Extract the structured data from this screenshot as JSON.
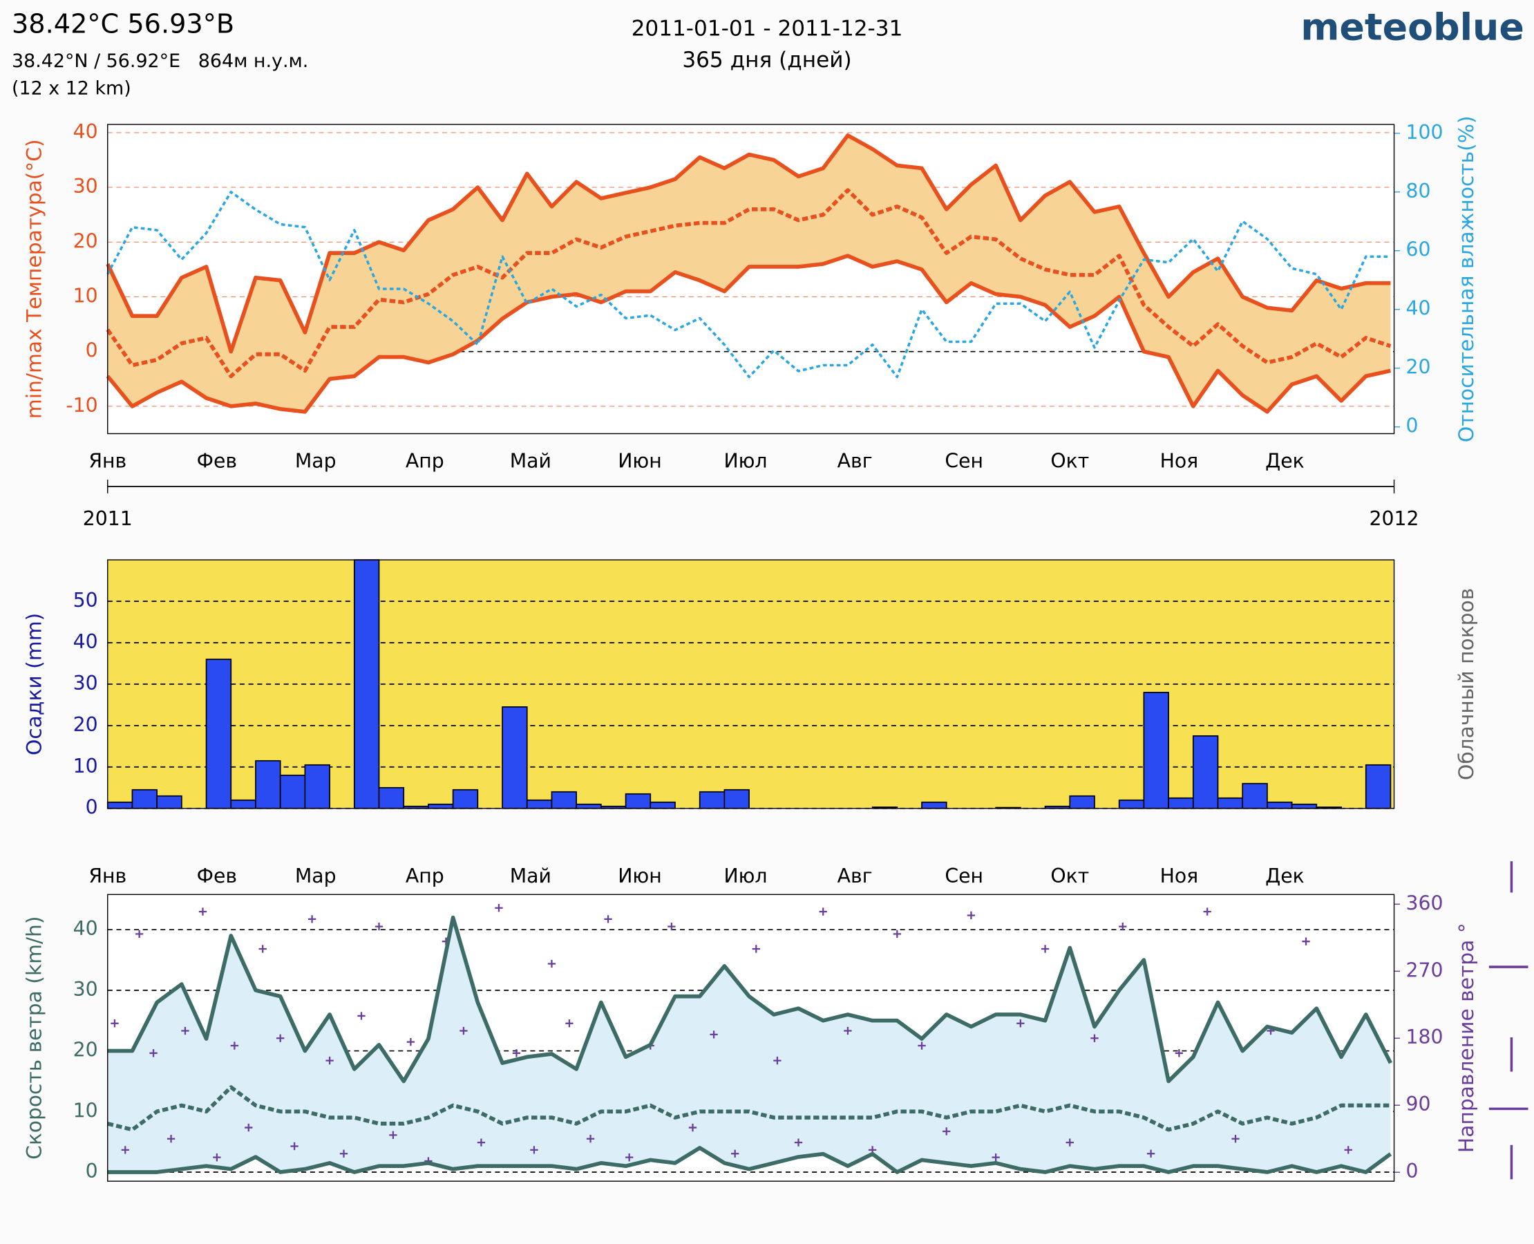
{
  "header": {
    "title": "38.42°C 56.93°B",
    "coords": "38.42°N / 56.92°E   864м н.у.м.",
    "grid_size": "(12 x 12 km)",
    "period": "2011-01-01 - 2011-12-31",
    "days": "365 дня (дней)",
    "brand": "meteoblue"
  },
  "chart_data": [
    {
      "type": "line",
      "ylabel": "min/max Температура(°C)",
      "y2label": "Относительная влажность(%)",
      "years": [
        "2011",
        "2012"
      ],
      "xlim": [
        0,
        365
      ],
      "xticks": [
        {
          "value": 0,
          "label": "Янв"
        },
        {
          "value": 31,
          "label": "Фев"
        },
        {
          "value": 59,
          "label": "Мар"
        },
        {
          "value": 90,
          "label": "Апр"
        },
        {
          "value": 120,
          "label": "Май"
        },
        {
          "value": 151,
          "label": "Июн"
        },
        {
          "value": 181,
          "label": "Июл"
        },
        {
          "value": 212,
          "label": "Авг"
        },
        {
          "value": 243,
          "label": "Сен"
        },
        {
          "value": 273,
          "label": "Окт"
        },
        {
          "value": 304,
          "label": "Ноя"
        },
        {
          "value": 334,
          "label": "Дек"
        }
      ],
      "ylim": [
        -15,
        41.5
      ],
      "yticks": [
        -10,
        0,
        10,
        20,
        30,
        40
      ],
      "y2lim": [
        -2.3,
        103
      ],
      "y2ticks": [
        0,
        20,
        40,
        60,
        80,
        100
      ],
      "grid": true,
      "band_color": "#f8d396",
      "x": [
        0,
        7,
        14,
        21,
        28,
        35,
        42,
        49,
        56,
        63,
        70,
        77,
        84,
        91,
        98,
        105,
        112,
        119,
        126,
        133,
        140,
        147,
        154,
        161,
        168,
        175,
        182,
        189,
        196,
        203,
        210,
        217,
        224,
        231,
        238,
        245,
        252,
        259,
        266,
        273,
        280,
        287,
        294,
        301,
        308,
        315,
        322,
        329,
        336,
        343,
        350,
        357,
        364
      ],
      "series": [
        {
          "color": "#e8501e",
          "values": [
            16,
            6.5,
            6.5,
            13.5,
            15.5,
            0,
            13.5,
            13,
            3.5,
            18,
            18,
            20,
            18.5,
            24,
            26,
            30,
            24,
            32.5,
            26.5,
            31,
            28,
            29,
            30,
            31.5,
            35.5,
            33.5,
            36,
            35,
            32,
            33.5,
            39.5,
            37,
            34,
            33.5,
            26,
            30.5,
            34,
            24,
            28.5,
            31,
            25.5,
            26.5,
            18,
            10,
            14.5,
            17,
            10,
            8,
            7.5,
            13,
            11.5,
            12.5,
            12.5
          ]
        },
        {
          "color": "#e8501e",
          "dash": true,
          "values": [
            4,
            -2.5,
            -1.5,
            1.5,
            2.5,
            -4.5,
            -0.5,
            -0.5,
            -3.5,
            4.5,
            4.5,
            9.5,
            9,
            10.5,
            14,
            15.5,
            13.5,
            18,
            18,
            20.5,
            19,
            21,
            22,
            23,
            23.5,
            23.5,
            26,
            26,
            24,
            25,
            29.5,
            25,
            26.5,
            24.5,
            18,
            21,
            20.5,
            17,
            15,
            14,
            14,
            17.5,
            8.5,
            4.5,
            1,
            5,
            1,
            -2,
            -1,
            1.5,
            -1,
            2.5,
            1
          ]
        },
        {
          "color": "#e8501e",
          "values": [
            -4.5,
            -10,
            -7.5,
            -5.5,
            -8.5,
            -10,
            -9.5,
            -10.5,
            -11,
            -5,
            -4.5,
            -1,
            -1,
            -2,
            -0.5,
            2,
            6,
            9,
            10,
            10.5,
            9,
            11,
            11,
            14.5,
            13,
            11,
            15.5,
            15.5,
            15.5,
            16,
            17.5,
            15.5,
            16.5,
            15,
            9,
            12.5,
            10.5,
            10,
            8.5,
            4.5,
            6.5,
            10,
            0,
            -1,
            -10,
            -3.5,
            -8,
            -11,
            -6,
            -4.5,
            -9,
            -4.5,
            -3.5
          ]
        },
        {
          "color": "#2aa6e0",
          "dash": true,
          "axis": "y2",
          "values": [
            52,
            68,
            67,
            57,
            66,
            80,
            74,
            69,
            68,
            50,
            67,
            47,
            47,
            42,
            36,
            28,
            58,
            42,
            47,
            41,
            45,
            37,
            38,
            33,
            37,
            28,
            17,
            26,
            19,
            21,
            21,
            28,
            17,
            40,
            29,
            29,
            42,
            42,
            36,
            46,
            27,
            43,
            57,
            56,
            64,
            53,
            70,
            64,
            54,
            52,
            40,
            58,
            58
          ]
        }
      ]
    },
    {
      "type": "bar",
      "ylabel": "Осадки (mm)",
      "y2label": "Облачный покров",
      "xlim": [
        0,
        365
      ],
      "ylim": [
        0,
        60
      ],
      "yticks": [
        0,
        10,
        20,
        30,
        40,
        50
      ],
      "grid": true,
      "color": "#2b4bf2",
      "background": "#f7e152",
      "x": [
        0,
        7,
        14,
        21,
        28,
        35,
        42,
        49,
        56,
        63,
        70,
        77,
        84,
        91,
        98,
        105,
        112,
        119,
        126,
        133,
        140,
        147,
        154,
        161,
        168,
        175,
        182,
        189,
        196,
        203,
        210,
        217,
        224,
        231,
        238,
        245,
        252,
        259,
        266,
        273,
        280,
        287,
        294,
        301,
        308,
        315,
        322,
        329,
        336,
        343,
        350,
        357
      ],
      "values": [
        1.5,
        4.5,
        3,
        0,
        36,
        2,
        11.5,
        8,
        10.5,
        0,
        60,
        5,
        0.5,
        1,
        4.5,
        0,
        24.5,
        2,
        4,
        1,
        0.5,
        3.5,
        1.5,
        0,
        4,
        4.5,
        0,
        0,
        0,
        0,
        0,
        0.3,
        0,
        1.5,
        0,
        0,
        0.2,
        0,
        0.5,
        3,
        0,
        2,
        28,
        2.5,
        17.5,
        2.5,
        6,
        1.5,
        1,
        0.3,
        0,
        10.5
      ]
    },
    {
      "type": "line",
      "ylabel": "Скорость ветра (km/h)",
      "y2label": "Направление ветра °",
      "xlim": [
        0,
        365
      ],
      "xticks": [
        {
          "value": 0,
          "label": "Янв"
        },
        {
          "value": 31,
          "label": "Фев"
        },
        {
          "value": 59,
          "label": "Мар"
        },
        {
          "value": 90,
          "label": "Апр"
        },
        {
          "value": 120,
          "label": "Май"
        },
        {
          "value": 151,
          "label": "Июн"
        },
        {
          "value": 181,
          "label": "Июл"
        },
        {
          "value": 212,
          "label": "Авг"
        },
        {
          "value": 243,
          "label": "Сен"
        },
        {
          "value": 273,
          "label": "Окт"
        },
        {
          "value": 304,
          "label": "Ноя"
        },
        {
          "value": 334,
          "label": "Дек"
        }
      ],
      "ylim": [
        -1.5,
        45.8
      ],
      "yticks": [
        0,
        10,
        20,
        30,
        40
      ],
      "y2lim": [
        -12,
        373
      ],
      "y2ticks": [
        0,
        90,
        180,
        270,
        360
      ],
      "grid": true,
      "band_color": "#dceef8",
      "x": [
        0,
        7,
        14,
        21,
        28,
        35,
        42,
        49,
        56,
        63,
        70,
        77,
        84,
        91,
        98,
        105,
        112,
        119,
        126,
        133,
        140,
        147,
        154,
        161,
        168,
        175,
        182,
        189,
        196,
        203,
        210,
        217,
        224,
        231,
        238,
        245,
        252,
        259,
        266,
        273,
        280,
        287,
        294,
        301,
        308,
        315,
        322,
        329,
        336,
        343,
        350,
        357,
        364
      ],
      "series": [
        {
          "color": "#3d6b66",
          "values": [
            20,
            20,
            28,
            31,
            22,
            39,
            30,
            29,
            20,
            26,
            17,
            21,
            15,
            22,
            42,
            28,
            18,
            19,
            19.5,
            17,
            28,
            19,
            21,
            29,
            29,
            34,
            29,
            26,
            27,
            25,
            26,
            25,
            25,
            22,
            26,
            24,
            26,
            26,
            25,
            37,
            24,
            30,
            35,
            15,
            19,
            28,
            20,
            24,
            23,
            27,
            19,
            26,
            18
          ]
        },
        {
          "color": "#3d6b66",
          "dash": true,
          "values": [
            8,
            7,
            10,
            11,
            10,
            14,
            11,
            10,
            10,
            9,
            9,
            8,
            8,
            9,
            11,
            10,
            8,
            9,
            9,
            8,
            10,
            10,
            11,
            9,
            10,
            10,
            10,
            9,
            9,
            9,
            9,
            9,
            10,
            10,
            9,
            10,
            10,
            11,
            10,
            11,
            10,
            10,
            9,
            7,
            8,
            10,
            8,
            9,
            8,
            9,
            11,
            11,
            11
          ]
        },
        {
          "color": "#3d6b66",
          "values": [
            0,
            0,
            0,
            0.5,
            1,
            0.5,
            2.5,
            0,
            0.5,
            1.5,
            0,
            1,
            1,
            1.5,
            0.5,
            1,
            1,
            1,
            1,
            0.5,
            1.5,
            1,
            2,
            1.5,
            4,
            1.5,
            0.5,
            1.5,
            2.5,
            3,
            1,
            3,
            0,
            2,
            1.5,
            1,
            1.5,
            0.5,
            0,
            1,
            0.5,
            1,
            1,
            0,
            1,
            1,
            0.5,
            0,
            1,
            0,
            1,
            0,
            3
          ]
        }
      ],
      "direction": {
        "color": "#6a3d9a",
        "axis": "y2",
        "x": [
          2,
          5,
          9,
          13,
          18,
          22,
          27,
          31,
          36,
          40,
          44,
          49,
          53,
          58,
          63,
          67,
          72,
          77,
          81,
          86,
          91,
          96,
          101,
          106,
          111,
          116,
          121,
          126,
          131,
          137,
          142,
          148,
          154,
          160,
          166,
          172,
          178,
          184,
          190,
          196,
          203,
          210,
          217,
          224,
          231,
          238,
          245,
          252,
          259,
          266,
          273,
          280,
          288,
          296,
          304,
          312,
          320,
          330,
          340,
          352
        ],
        "values": [
          200,
          30,
          320,
          160,
          45,
          190,
          350,
          20,
          170,
          60,
          300,
          180,
          35,
          340,
          150,
          25,
          210,
          330,
          50,
          175,
          15,
          310,
          190,
          40,
          355,
          160,
          30,
          280,
          200,
          45,
          340,
          20,
          170,
          330,
          60,
          185,
          25,
          300,
          150,
          40,
          350,
          190,
          30,
          320,
          170,
          55,
          345,
          20,
          200,
          300,
          40,
          180,
          330,
          25,
          160,
          350,
          45,
          190,
          310,
          30
        ]
      }
    }
  ]
}
